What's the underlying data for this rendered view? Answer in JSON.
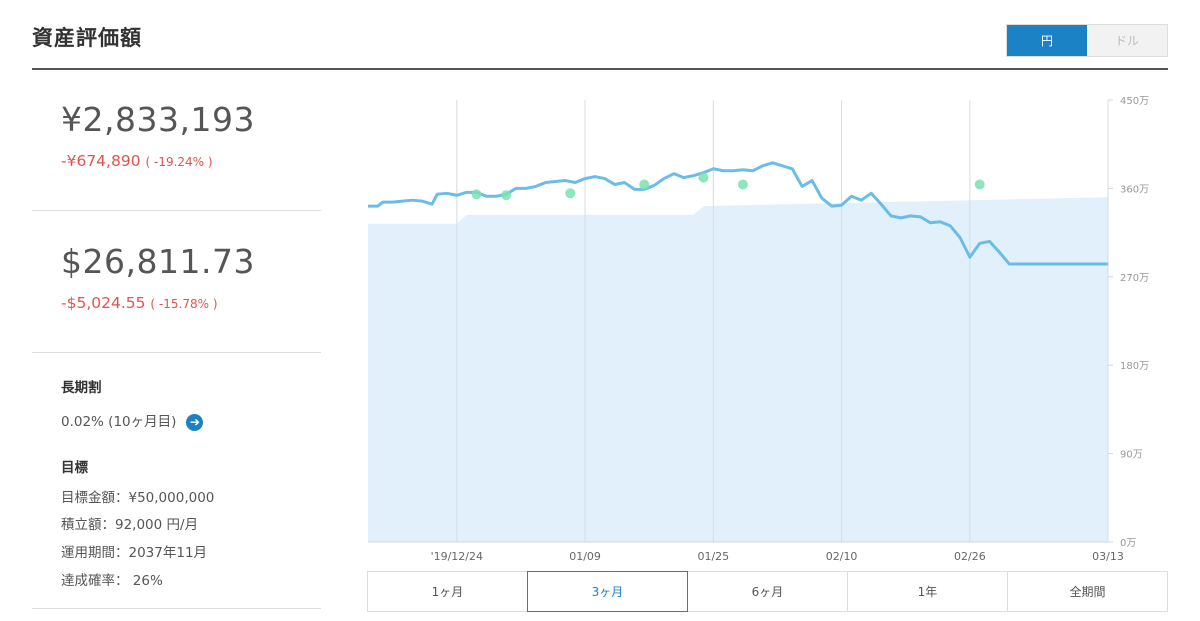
{
  "header": {
    "title": "資産評価額",
    "currency_toggle": [
      {
        "label": "円",
        "active": true
      },
      {
        "label": "ドル",
        "active": false
      }
    ]
  },
  "summary": {
    "jpy": {
      "amount": "¥2,833,193",
      "change": "-¥674,890",
      "change_pct": "( -19.24% )"
    },
    "usd": {
      "amount": "$26,811.73",
      "change": "-$5,024.55",
      "change_pct": "( -15.78% )"
    }
  },
  "long_term": {
    "label": "長期割",
    "value": "0.02% (10ヶ月目)"
  },
  "goal": {
    "label": "目標",
    "target_amount": "目標金額：¥50,000,000",
    "monthly": "積立額：92,000 円/月",
    "period": "運用期間：2037年11月",
    "probability": "達成確率： 26%"
  },
  "periods": [
    {
      "label": "1ヶ月",
      "active": false
    },
    {
      "label": "3ヶ月",
      "active": true
    },
    {
      "label": "6ヶ月",
      "active": false
    },
    {
      "label": "1年",
      "active": false
    },
    {
      "label": "全期間",
      "active": false
    }
  ],
  "colors": {
    "accent": "#1b82c5",
    "negative": "#e0544b",
    "line": "#6bbde8",
    "area": "#e1f0fa",
    "marker": "#7ee0b0"
  },
  "chart_data": {
    "type": "line",
    "x_tick_labels": [
      "'19/12/24",
      "01/09",
      "01/25",
      "02/10",
      "02/26",
      "03/13"
    ],
    "y_tick_labels": [
      "0万",
      "90万",
      "180万",
      "270万",
      "360万",
      "450万"
    ],
    "ylim": [
      0,
      4500000
    ],
    "grid": "vertical",
    "series": [
      {
        "role": "valuation",
        "style": "line",
        "x": [
          0,
          2,
          3,
          5,
          7,
          9,
          11,
          13,
          14,
          16,
          18,
          20,
          22,
          24,
          26,
          28,
          30,
          32,
          34,
          36,
          38,
          40,
          42,
          44,
          46,
          48,
          50,
          52,
          54,
          56,
          58,
          60,
          62,
          64,
          66,
          68,
          70,
          72,
          74,
          76,
          78,
          80,
          82,
          84,
          86,
          88,
          90,
          92,
          94,
          96,
          98,
          100,
          102,
          104,
          106,
          108,
          110,
          112,
          114,
          116,
          118,
          120,
          122,
          124,
          126,
          128,
          130,
          132,
          133,
          134,
          136,
          138,
          140,
          142,
          144,
          145,
          146,
          148,
          150
        ],
        "y": [
          3420000,
          3420000,
          3460000,
          3460000,
          3470000,
          3480000,
          3470000,
          3440000,
          3540000,
          3550000,
          3530000,
          3560000,
          3560000,
          3520000,
          3520000,
          3540000,
          3600000,
          3600000,
          3620000,
          3660000,
          3670000,
          3680000,
          3660000,
          3700000,
          3720000,
          3700000,
          3640000,
          3660000,
          3590000,
          3590000,
          3630000,
          3700000,
          3750000,
          3710000,
          3730000,
          3760000,
          3800000,
          3780000,
          3780000,
          3790000,
          3780000,
          3830000,
          3860000,
          3830000,
          3800000,
          3620000,
          3680000,
          3500000,
          3420000,
          3430000,
          3520000,
          3480000,
          3550000,
          3440000,
          3320000,
          3300000,
          3320000,
          3310000,
          3250000,
          3260000,
          3220000,
          3100000,
          2900000,
          3040000,
          3060000,
          2950000,
          2830000,
          2830000,
          2830000,
          2830000,
          2830000,
          2830000,
          2830000,
          2830000,
          2830000,
          2830000,
          2830000,
          2830000,
          2830000
        ]
      },
      {
        "role": "invested",
        "style": "area",
        "x": [
          0,
          18,
          20,
          66,
          68,
          150
        ],
        "y": [
          3240000,
          3240000,
          3330000,
          3330000,
          3420000,
          3510000
        ]
      }
    ],
    "markers": [
      {
        "x": 22,
        "y": 3540000
      },
      {
        "x": 28,
        "y": 3530000
      },
      {
        "x": 41,
        "y": 3550000
      },
      {
        "x": 56,
        "y": 3640000
      },
      {
        "x": 68,
        "y": 3710000
      },
      {
        "x": 76,
        "y": 3640000
      },
      {
        "x": 124,
        "y": 3640000
      }
    ]
  }
}
